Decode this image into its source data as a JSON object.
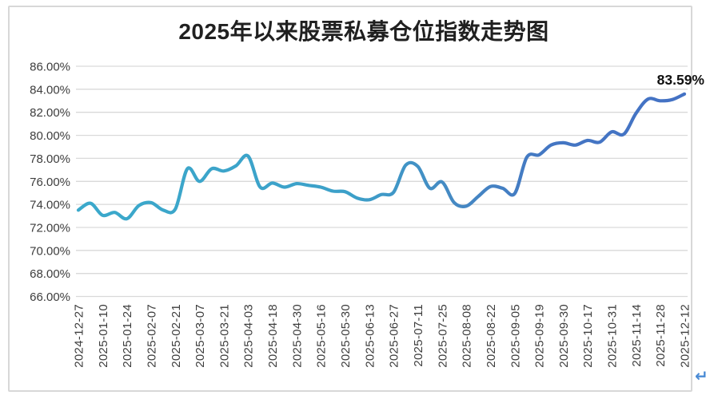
{
  "page": {
    "return_mark": "↵"
  },
  "chart_data": {
    "type": "line",
    "title": "2025年以来股票私募仓位指数走势图",
    "xlabel": "",
    "ylabel": "",
    "ylim": [
      66,
      86
    ],
    "grid": true,
    "legend": false,
    "grid_color": "#D9D9D9",
    "y_tick_values": [
      86,
      84,
      82,
      80,
      78,
      76,
      74,
      72,
      70,
      68,
      66
    ],
    "y_ticks": [
      "86.00%",
      "84.00%",
      "82.00%",
      "80.00%",
      "78.00%",
      "76.00%",
      "74.00%",
      "72.00%",
      "70.00%",
      "68.00%",
      "66.00%"
    ],
    "label_every": 2,
    "x_labels": [
      "2024-12-27",
      "2025-01-10",
      "2025-01-24",
      "2025-02-07",
      "2025-02-21",
      "2025-03-07",
      "2025-03-21",
      "2025-04-03",
      "2025-04-18",
      "2025-04-30",
      "2025-05-16",
      "2025-05-30",
      "2025-06-13",
      "2025-06-27",
      "2025-07-11",
      "2025-07-25",
      "2025-08-08",
      "2025-08-22",
      "2025-09-05",
      "2025-09-19",
      "2025-09-30",
      "2025-10-17",
      "2025-10-31",
      "2025-11-14",
      "2025-11-28",
      "2025-12-12"
    ],
    "values": [
      73.5,
      74.1,
      73.05,
      73.3,
      72.75,
      73.9,
      74.15,
      73.5,
      73.6,
      77.1,
      76.0,
      77.1,
      76.9,
      77.35,
      78.2,
      75.5,
      75.85,
      75.5,
      75.8,
      75.65,
      75.5,
      75.15,
      75.1,
      74.55,
      74.4,
      74.85,
      75.05,
      77.4,
      77.3,
      75.4,
      75.95,
      74.15,
      73.85,
      74.7,
      75.55,
      75.4,
      74.95,
      78.1,
      78.3,
      79.15,
      79.35,
      79.15,
      79.55,
      79.4,
      80.3,
      80.1,
      81.9,
      83.15,
      83.0,
      83.1,
      83.59
    ],
    "end_label": "83.59%",
    "line_gradient": [
      {
        "offset": "0",
        "color": "#3BA9CB"
      },
      {
        "offset": "0.45",
        "color": "#3CA0C9"
      },
      {
        "offset": "0.62",
        "color": "#4589C3"
      },
      {
        "offset": "0.78",
        "color": "#4476C3"
      },
      {
        "offset": "1",
        "color": "#4472C4"
      }
    ]
  }
}
